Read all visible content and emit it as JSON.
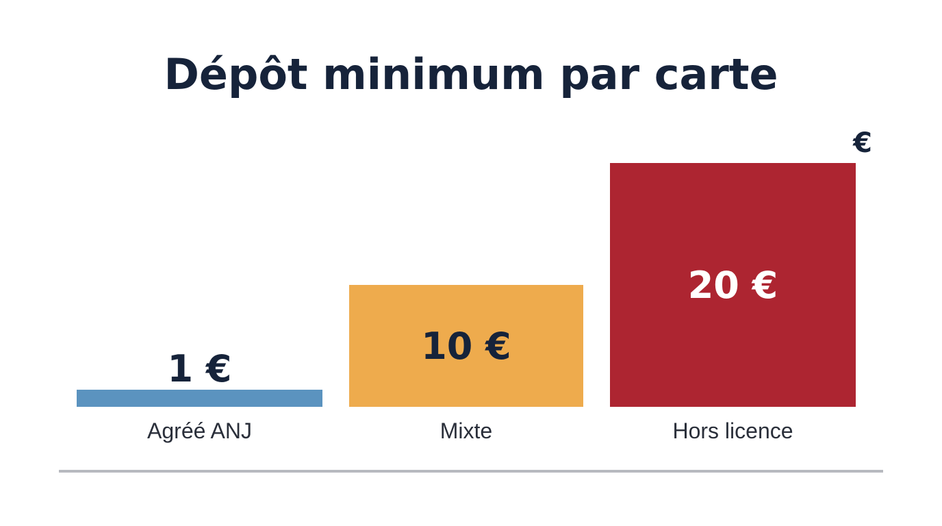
{
  "chart_data": {
    "type": "bar",
    "title": "Dépôt minimum par carte",
    "unit_label": "€",
    "categories": [
      "Agréé ANJ",
      "Mixte",
      "Hors licence"
    ],
    "values": [
      1,
      10,
      20
    ],
    "value_labels": [
      "1 €",
      "10 €",
      "20 €"
    ],
    "colors": [
      "#5b93bf",
      "#eeab4d",
      "#ad2531"
    ],
    "ylim": [
      0,
      20
    ],
    "grid": false,
    "legend": "none"
  }
}
